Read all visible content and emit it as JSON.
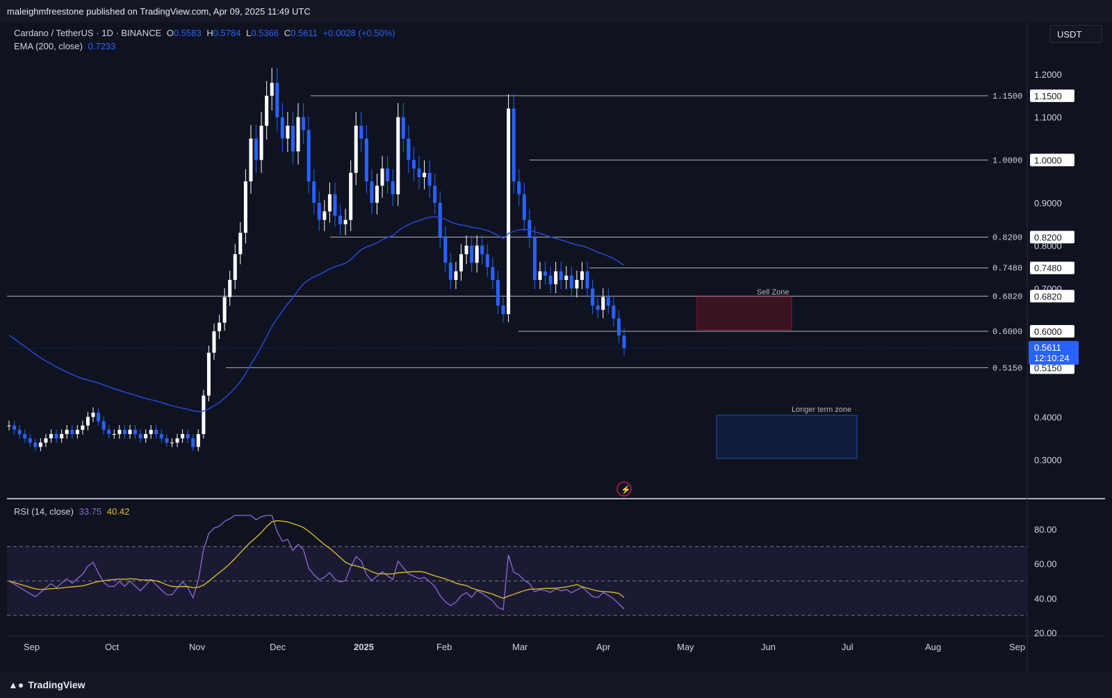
{
  "header": {
    "publisher": "maleighmfreestone published on TradingView.com, Apr 09, 2025 11:49 UTC"
  },
  "symbol": {
    "title": "Cardano / TetherUS · 1D · BINANCE",
    "o_label": "O",
    "o_value": "0.5583",
    "h_label": "H",
    "h_value": "0.5784",
    "l_label": "L",
    "l_value": "0.5366",
    "c_label": "C",
    "c_value": "0.5611",
    "change": "+0.0028 (+0.50%)"
  },
  "ema": {
    "label": "EMA (200, close)",
    "value": "0.7233"
  },
  "rsi": {
    "label": "RSI (14, close)",
    "value": "33.75",
    "ma_value": "40.42"
  },
  "currency_button": "USDT",
  "price_scale": [
    "1.2000",
    "1.1000",
    "0.9000",
    "0.8000",
    "0.7000",
    "0.4000",
    "0.3000"
  ],
  "levels": [
    {
      "label": "1.1500",
      "value": 1.15
    },
    {
      "label": "1.0000",
      "value": 1.0
    },
    {
      "label": "0.8200",
      "value": 0.82
    },
    {
      "label": "0.7480",
      "value": 0.748
    },
    {
      "label": "0.6820",
      "value": 0.682
    },
    {
      "label": "0.6000",
      "value": 0.6
    },
    {
      "label": "0.5150",
      "value": 0.515
    }
  ],
  "last_price": {
    "value": "0.5611",
    "countdown": "12:10:24"
  },
  "zones": {
    "sell": "Sell Zone",
    "longer_term": "Longer term zone"
  },
  "rsi_scale": [
    "80.00",
    "60.00",
    "40.00",
    "20.00"
  ],
  "time_axis": [
    "Sep",
    "Oct",
    "Nov",
    "Dec",
    "2025",
    "Feb",
    "Mar",
    "Apr",
    "May",
    "Jun",
    "Jul",
    "Aug",
    "Sep"
  ],
  "footer": {
    "brand": "TradingView"
  },
  "colors": {
    "bg": "#0f1320",
    "up": "#ffffff",
    "down": "#2962ff",
    "ema": "#2948d6",
    "rsi": "#8e6bd6",
    "rsi_ma": "#e6c229",
    "sell_zone": "#8b1a2b",
    "longer_zone": "#1e4fb5"
  },
  "chart_data": {
    "type": "candlestick",
    "symbol": "ADA/USDT",
    "ohlc_last": {
      "open": 0.5583,
      "high": 0.5784,
      "low": 0.5366,
      "close": 0.5611
    },
    "closes": [
      0.38,
      0.37,
      0.36,
      0.35,
      0.34,
      0.33,
      0.34,
      0.35,
      0.36,
      0.35,
      0.36,
      0.37,
      0.36,
      0.37,
      0.38,
      0.4,
      0.41,
      0.39,
      0.37,
      0.36,
      0.36,
      0.37,
      0.36,
      0.37,
      0.36,
      0.35,
      0.36,
      0.37,
      0.36,
      0.35,
      0.34,
      0.34,
      0.35,
      0.36,
      0.35,
      0.33,
      0.36,
      0.45,
      0.55,
      0.6,
      0.62,
      0.68,
      0.72,
      0.78,
      0.83,
      0.95,
      1.05,
      1.0,
      1.08,
      1.15,
      1.18,
      1.1,
      1.05,
      1.08,
      1.02,
      1.1,
      1.07,
      0.95,
      0.9,
      0.86,
      0.88,
      0.92,
      0.87,
      0.85,
      0.86,
      0.97,
      1.08,
      1.05,
      0.95,
      0.9,
      0.94,
      0.98,
      0.95,
      0.92,
      1.1,
      1.05,
      1.0,
      0.98,
      0.96,
      0.97,
      0.94,
      0.9,
      0.82,
      0.76,
      0.72,
      0.74,
      0.78,
      0.8,
      0.76,
      0.8,
      0.78,
      0.75,
      0.72,
      0.66,
      0.64,
      1.12,
      0.95,
      0.92,
      0.86,
      0.82,
      0.72,
      0.74,
      0.73,
      0.71,
      0.74,
      0.72,
      0.73,
      0.7,
      0.72,
      0.74,
      0.7,
      0.66,
      0.65,
      0.68,
      0.66,
      0.63,
      0.59,
      0.5611
    ],
    "ema_200_last": 0.7233,
    "rsi_last": 33.75,
    "rsi_ma_last": 40.42,
    "rsi_levels": [
      70,
      50,
      30
    ],
    "horizontal_levels": [
      1.15,
      1.0,
      0.82,
      0.748,
      0.682,
      0.6,
      0.515
    ],
    "x_labels": [
      "Sep",
      "Oct",
      "Nov",
      "Dec",
      "2025",
      "Feb",
      "Mar",
      "Apr",
      "May",
      "Jun",
      "Jul",
      "Aug",
      "Sep"
    ]
  }
}
